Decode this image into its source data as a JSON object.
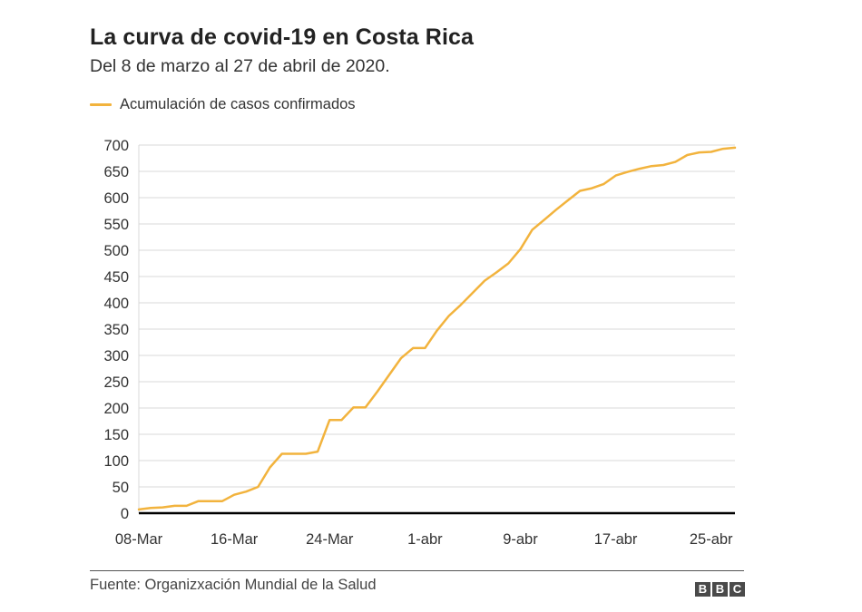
{
  "title": "La curva de covid-19 en Costa Rica",
  "subtitle": "Del 8 de marzo al 27 de abril de 2020.",
  "legend": {
    "label": "Acumulación de casos confirmados",
    "color": "#f2b33d"
  },
  "footer": {
    "source": "Fuente: Organizxación Mundial de la Salud",
    "logo": [
      "B",
      "B",
      "C"
    ]
  },
  "colors": {
    "line": "#f2b33d",
    "grid": "#d9d9d9",
    "baseline": "#000000",
    "text": "#333333"
  },
  "chart_data": {
    "type": "line",
    "title": "La curva de covid-19 en Costa Rica",
    "subtitle": "Del 8 de marzo al 27 de abril de 2020.",
    "xlabel": "",
    "ylabel": "",
    "ylim": [
      0,
      700
    ],
    "yticks": [
      0,
      50,
      100,
      150,
      200,
      250,
      300,
      350,
      400,
      450,
      500,
      550,
      600,
      650,
      700
    ],
    "xtick_labels": [
      "08-Mar",
      "16-Mar",
      "24-Mar",
      "1-abr",
      "9-abr",
      "17-abr",
      "25-abr"
    ],
    "xtick_day_index": [
      0,
      8,
      16,
      24,
      32,
      40,
      48
    ],
    "grid": true,
    "legend_position": "top-left",
    "x_start": "2020-03-08",
    "x_end": "2020-04-27",
    "series": [
      {
        "name": "Acumulación de casos confirmados",
        "color": "#f2b33d",
        "values": [
          7,
          10,
          11,
          14,
          14,
          23,
          23,
          23,
          35,
          41,
          50,
          87,
          113,
          113,
          113,
          117,
          177,
          177,
          201,
          201,
          231,
          263,
          295,
          314,
          314,
          347,
          375,
          396,
          419,
          442,
          458,
          475,
          502,
          539,
          558,
          577,
          595,
          613,
          618,
          626,
          642,
          649,
          655,
          660,
          662,
          668,
          681,
          686,
          687,
          693,
          695
        ]
      }
    ]
  }
}
